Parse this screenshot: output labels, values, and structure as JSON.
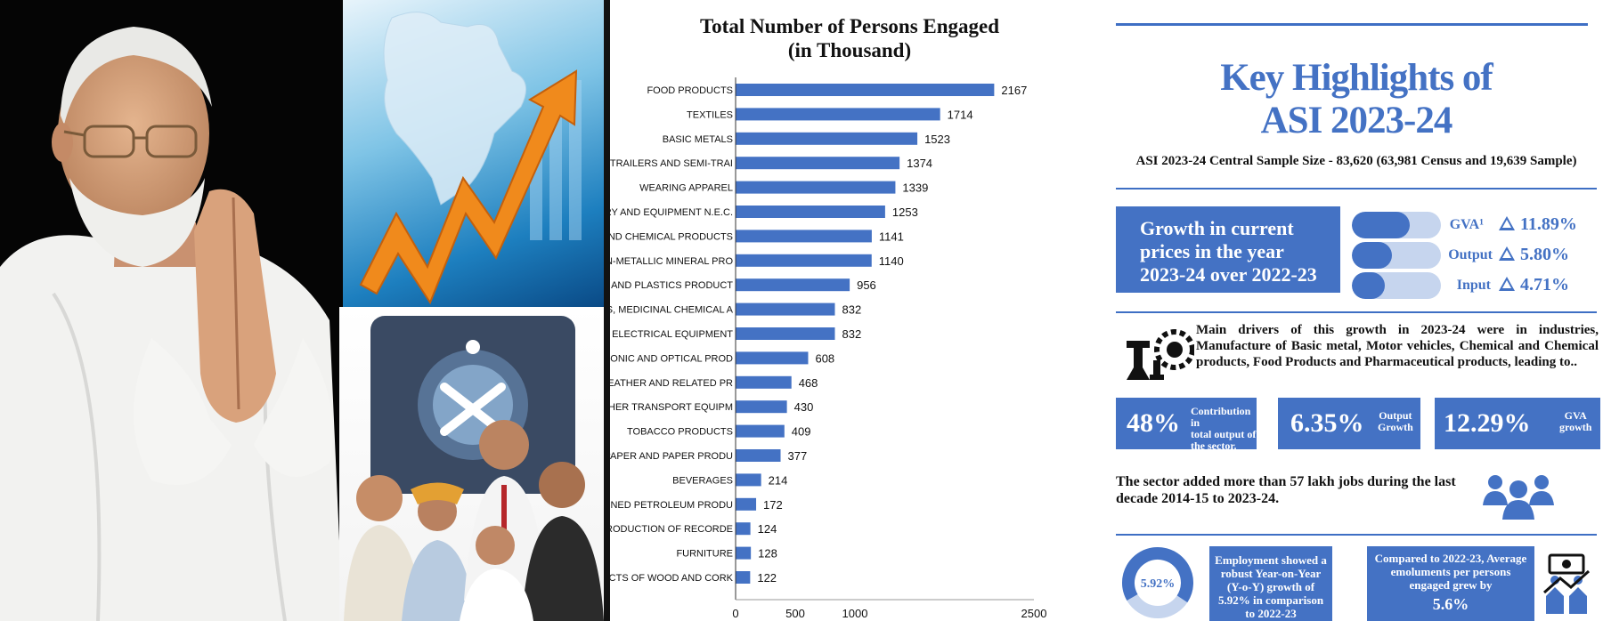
{
  "chart_data": {
    "type": "bar",
    "orientation": "horizontal",
    "title": "Total Number of Persons Engaged\n(in Thousand)",
    "title_lines": [
      "Total Number of Persons Engaged",
      "(in Thousand)"
    ],
    "categories": [
      "FOOD PRODUCTS",
      "TEXTILES",
      "BASIC METALS",
      "MOTOR VEHICLES, TRAILERS AND SEMI-TRAI",
      "WEARING APPAREL",
      "MACHINERY AND EQUIPMENT N.E.C.",
      "CHEMICALS AND CHEMICAL PRODUCTS",
      "OTHER NON-METALLIC MINERAL PRO",
      "RUBBER AND PLASTICS PRODUCT",
      "PHARMACEUTICALS, MEDICINAL CHEMICAL A",
      "ELECTRICAL EQUIPMENT",
      "COMPUTER, ELECTRONIC AND OPTICAL PROD",
      "LEATHER AND RELATED PR",
      "OTHER TRANSPORT EQUIPM",
      "TOBACCO PRODUCTS",
      "PAPER AND PAPER PRODU",
      "BEVERAGES",
      "COKE AND REFINED PETROLEUM PRODU",
      "PRINTING AND REPRODUCTION OF RECORDE",
      "FURNITURE",
      "WOOD AND PRODUCTS OF WOOD AND CORK"
    ],
    "values": [
      2167,
      1714,
      1523,
      1374,
      1339,
      1253,
      1141,
      1140,
      956,
      832,
      832,
      608,
      468,
      430,
      409,
      377,
      214,
      172,
      124,
      128,
      122
    ],
    "value_labels": [
      "2167",
      "1714",
      "1523",
      "1374",
      "1339",
      "1253",
      "1141",
      "1140",
      "956",
      "832",
      "832",
      "608",
      "468",
      "430",
      "409",
      "377",
      "214",
      "172",
      "124",
      "128",
      "122"
    ],
    "xlim": [
      0,
      2500
    ],
    "xticks": [
      0,
      500,
      1000,
      2500
    ],
    "xtick_labels": [
      "0",
      "500",
      "1000",
      "2500"
    ],
    "grid": false,
    "bar_color": "#4472c4"
  },
  "highlights": {
    "title_line1": "Key Highlights of",
    "title_line2": "ASI 2023-24",
    "sample_size": "ASI 2023-24 Central Sample Size - 83,620  (63,981 Census and 19,639 Sample)",
    "growth": {
      "line1": "Growth in current",
      "line2": "prices in the year",
      "line3": "2023-24 over 2022-23",
      "items": [
        {
          "label": "GVA¹",
          "value": "11.89%",
          "level": 0.65
        },
        {
          "label": "Output",
          "value": "5.80%",
          "level": 0.45
        },
        {
          "label": "Input",
          "value": "4.71%",
          "level": 0.37
        }
      ]
    },
    "drivers": "Main drivers of this growth in 2023-24 were in industries, Manufacture of Basic metal, Motor vehicles, Chemical and Chemical products, Food Products and Pharmaceutical products, leading to..",
    "stats": [
      {
        "big": "48%",
        "small_lines": [
          "Contribution in",
          "total output of",
          "the sector."
        ]
      },
      {
        "big": "6.35%",
        "small_lines": [
          "Output",
          "Growth"
        ]
      },
      {
        "big": "12.29%",
        "small_lines": [
          "GVA",
          "growth"
        ]
      }
    ],
    "jobs": "The sector added more than 57 lakh jobs during the last decade 2014-15 to 2023-24.",
    "employment": {
      "donut_value": "5.92%",
      "text": "Employment showed a robust Year-on-Year (Y-o-Y) growth of 5.92% in comparison to 2022-23"
    },
    "emoluments": {
      "text": "Compared to 2022-23, Average emoluments per persons engaged grew by",
      "value": "5.6%"
    }
  },
  "colors": {
    "accent": "#4472c4",
    "accent_light": "#c6d5ee"
  }
}
